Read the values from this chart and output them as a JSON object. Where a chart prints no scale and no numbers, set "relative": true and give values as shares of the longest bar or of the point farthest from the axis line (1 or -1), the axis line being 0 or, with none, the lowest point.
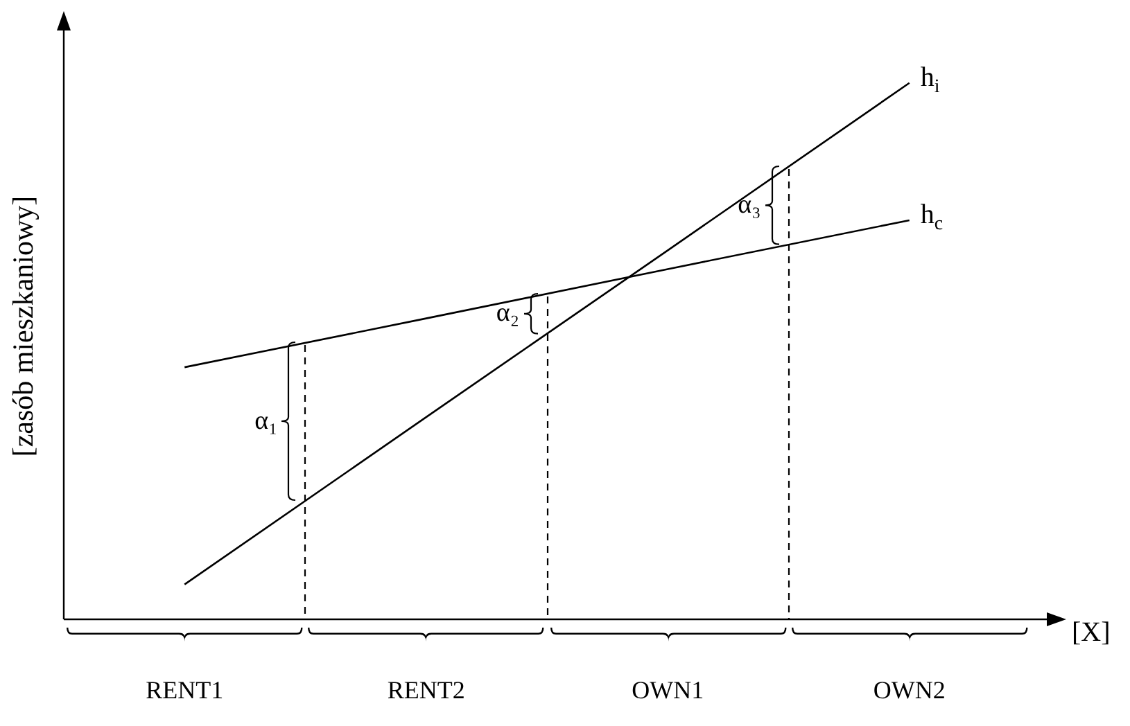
{
  "chart_data": {
    "type": "line",
    "relative": true,
    "ylabel": "[zasób mieszkaniowy]",
    "xlabel": "[X]",
    "categories": [
      "RENT1",
      "RENT2",
      "OWN1",
      "OWN2"
    ],
    "series": [
      {
        "name": "h$_{i}$",
        "color": "#000000",
        "values": [
          0.065,
          0.377,
          0.688,
          1
        ]
      },
      {
        "name": "h$_{c}$",
        "color": "#000000",
        "values": [
          0.47,
          0.561,
          0.653,
          0.744
        ]
      }
    ],
    "annotations": [
      "α₁",
      "α₂",
      "α₃"
    ],
    "marker": "none",
    "line_style": "solid"
  }
}
